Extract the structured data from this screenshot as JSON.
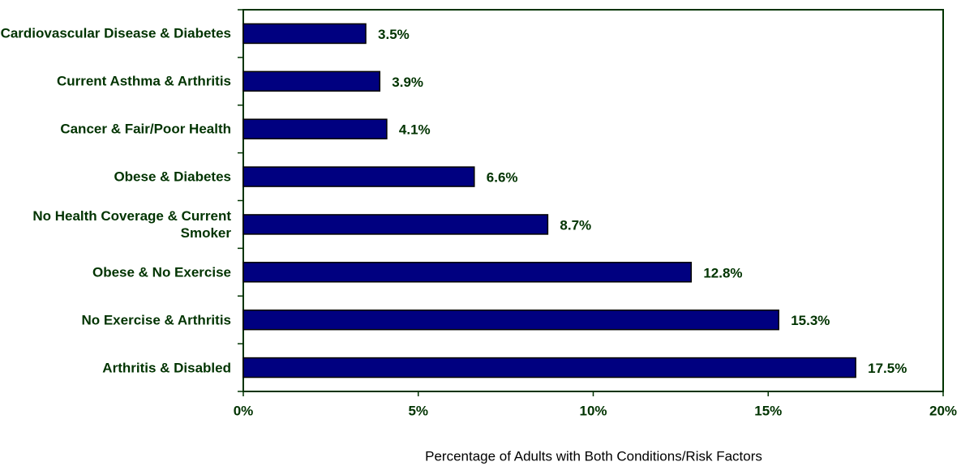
{
  "chart_data": {
    "type": "bar",
    "orientation": "horizontal",
    "categories": [
      "Cardiovascular Disease & Diabetes",
      "Current Asthma & Arthritis",
      "Cancer & Fair/Poor Health",
      "Obese & Diabetes",
      "No Health Coverage & Current Smoker",
      "Obese & No Exercise",
      "No Exercise & Arthritis",
      "Arthritis & Disabled"
    ],
    "values": [
      3.5,
      3.9,
      4.1,
      6.6,
      8.7,
      12.8,
      15.3,
      17.5
    ],
    "value_labels": [
      "3.5%",
      "3.9%",
      "4.1%",
      "6.6%",
      "8.7%",
      "12.8%",
      "15.3%",
      "17.5%"
    ],
    "color": "#000080",
    "xlim": [
      0,
      20
    ],
    "xticks": [
      {
        "value": 0,
        "label": "0%"
      },
      {
        "value": 5,
        "label": "5%"
      },
      {
        "value": 10,
        "label": "10%"
      },
      {
        "value": 15,
        "label": "15%"
      },
      {
        "value": 20,
        "label": "20%"
      }
    ],
    "xlabel": "Percentage of Adults with Both Conditions/Risk Factors",
    "grid": false
  }
}
